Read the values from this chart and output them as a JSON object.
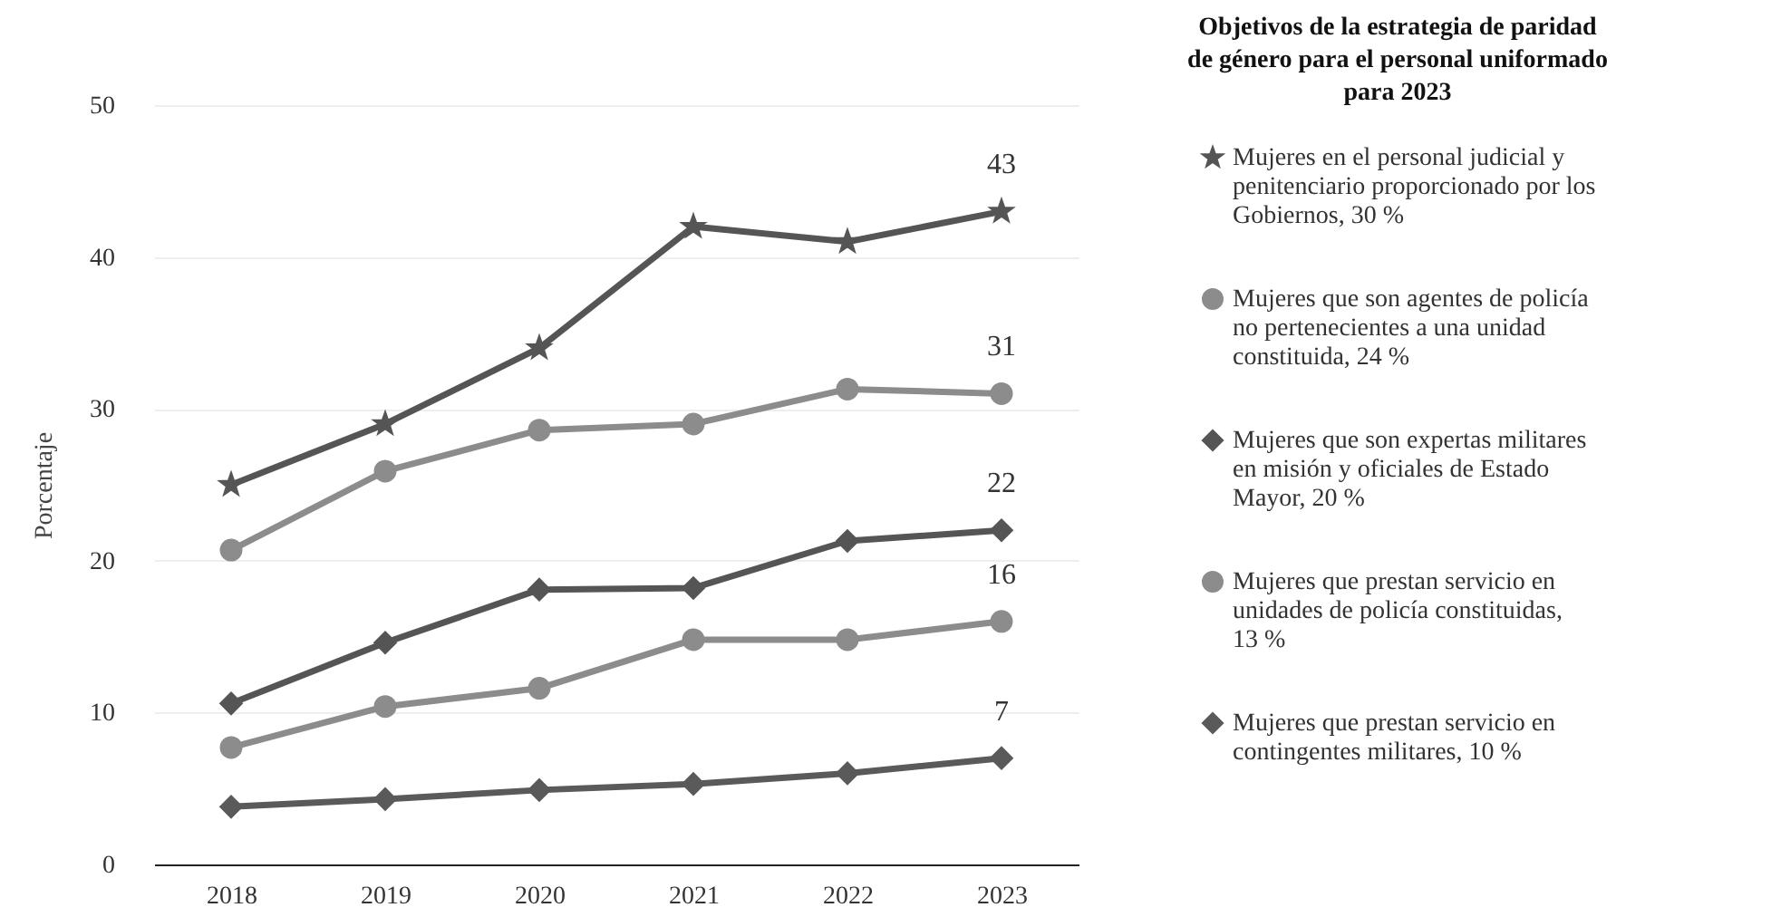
{
  "chart_data": {
    "type": "line",
    "ylabel": "Porcentaje",
    "legend_title": "Objetivos de la estrategia de paridad de género para el personal uniformado para 2023",
    "categories": [
      "2018",
      "2019",
      "2020",
      "2021",
      "2022",
      "2023"
    ],
    "ylim": [
      0,
      50
    ],
    "yticks": [
      0,
      10,
      20,
      30,
      40,
      50
    ],
    "grid": "y",
    "legend": "right",
    "series": [
      {
        "name": "Mujeres en el personal judicial y penitenciario proporcionado por los Gobiernos, 30 %",
        "color": "#555555",
        "marker": "star",
        "values": [
          25,
          29,
          34,
          42,
          41,
          43
        ],
        "value_labels": [
          null,
          null,
          null,
          null,
          null,
          "43"
        ]
      },
      {
        "name": "Mujeres que son agentes de policía no pertenecientes a una unidad constituida, 24 %",
        "color": "#8c8c8c",
        "marker": "circle",
        "values": [
          20.7,
          25.9,
          28.6,
          29.0,
          31.3,
          31
        ],
        "value_labels": [
          null,
          null,
          null,
          null,
          null,
          "31"
        ]
      },
      {
        "name": "Mujeres que son expertas militares en misión y oficiales de Estado Mayor, 20 %",
        "color": "#555555",
        "marker": "diamond",
        "values": [
          10.6,
          14.6,
          18.1,
          18.2,
          21.3,
          22
        ],
        "value_labels": [
          null,
          null,
          null,
          null,
          null,
          "22"
        ]
      },
      {
        "name": "Mujeres que prestan servicio en unidades de policía constituidas, 13 %",
        "color": "#8c8c8c",
        "marker": "circle",
        "values": [
          7.7,
          10.4,
          11.6,
          14.8,
          14.8,
          16
        ],
        "value_labels": [
          null,
          null,
          null,
          null,
          null,
          "16"
        ]
      },
      {
        "name": "Mujeres que prestan servicio en contingentes militares, 10 %",
        "color": "#5a5a5a",
        "marker": "diamond",
        "values": [
          3.8,
          4.3,
          4.9,
          5.3,
          6.0,
          7
        ],
        "value_labels": [
          null,
          null,
          null,
          null,
          null,
          "7"
        ]
      }
    ]
  }
}
